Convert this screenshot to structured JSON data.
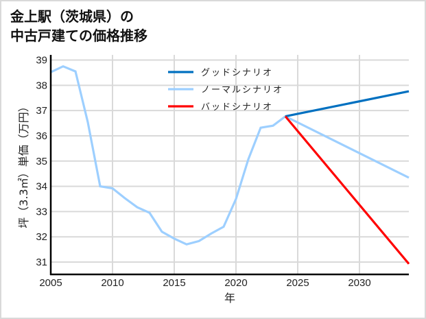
{
  "title": {
    "line1": "金上駅（茨城県）の",
    "line2": "中古戸建ての価格推移"
  },
  "colors": {
    "good": "#0070c0",
    "normal": "#9dcfff",
    "bad": "#ff0000",
    "grid": "#d9d9d9",
    "border": "#d9d9d9"
  },
  "chart_data": {
    "type": "line",
    "title": "金上駅（茨城県）の中古戸建ての価格推移",
    "xlabel": "年",
    "ylabel": "坪（3.3㎡）単価（万円）",
    "xlim": [
      2005,
      2034
    ],
    "ylim": [
      30.5,
      39.2
    ],
    "x_ticks": [
      2005,
      2010,
      2015,
      2020,
      2025,
      2030
    ],
    "y_ticks": [
      31,
      32,
      33,
      34,
      35,
      36,
      37,
      38,
      39
    ],
    "grid": true,
    "legend_position": "upper center",
    "series": [
      {
        "name": "グッドシナリオ",
        "color": "#0070c0",
        "x": [
          2024,
          2034
        ],
        "values": [
          36.77,
          37.76
        ]
      },
      {
        "name": "ノーマルシナリオ",
        "color": "#9dcfff",
        "x": [
          2005,
          2006,
          2007,
          2008,
          2009,
          2010,
          2011,
          2012,
          2013,
          2014,
          2015,
          2016,
          2017,
          2018,
          2019,
          2020,
          2021,
          2022,
          2023,
          2024,
          2034
        ],
        "values": [
          38.52,
          38.75,
          38.55,
          36.54,
          34.0,
          33.92,
          33.53,
          33.17,
          32.95,
          32.2,
          31.93,
          31.7,
          31.83,
          32.13,
          32.4,
          33.5,
          35.07,
          36.32,
          36.4,
          36.77,
          34.34
        ]
      },
      {
        "name": "バッドシナリオ",
        "color": "#ff0000",
        "x": [
          2024,
          2034
        ],
        "values": [
          36.77,
          30.93
        ]
      }
    ]
  }
}
